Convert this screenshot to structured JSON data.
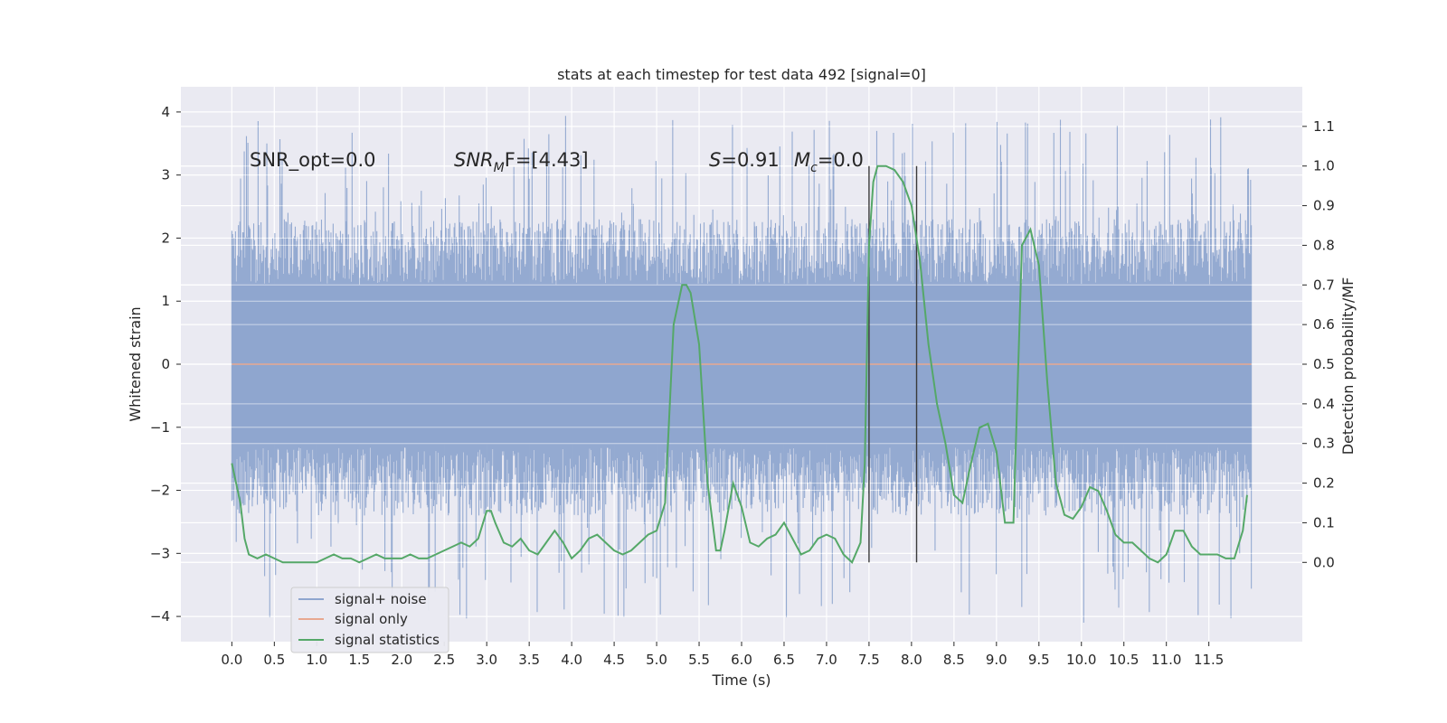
{
  "chart_data": {
    "type": "line",
    "title": "stats at each timestep for test data 492 [signal=0]",
    "xlabel": "Time (s)",
    "ylabel_left": "Whitened strain",
    "ylabel_right": "Detection probability/MF",
    "xlim": [
      -0.6,
      12.6
    ],
    "ylim_left": [
      -4.4,
      4.4
    ],
    "ylim_right": [
      -0.2,
      1.2
    ],
    "grid": true,
    "legend_position": "lower-left",
    "x_ticks": [
      "0.0",
      "0.5",
      "1.0",
      "1.5",
      "2.0",
      "2.5",
      "3.0",
      "3.5",
      "4.0",
      "4.5",
      "5.0",
      "5.5",
      "6.0",
      "6.5",
      "7.0",
      "7.5",
      "8.0",
      "8.5",
      "9.0",
      "9.5",
      "10.0",
      "10.5",
      "11.0",
      "11.5"
    ],
    "y_ticks_left": [
      "4",
      "3",
      "2",
      "1",
      "0",
      "−1",
      "−2",
      "−3",
      "−4"
    ],
    "y_ticks_right": [
      "1.1",
      "1.0",
      "0.9",
      "0.8",
      "0.7",
      "0.6",
      "0.5",
      "0.4",
      "0.3",
      "0.2",
      "0.1",
      "0.0"
    ],
    "annotations": {
      "snr_opt": "SNR_opt=0.0",
      "snr_mf_main": "SNR",
      "snr_mf_sub": "M",
      "snr_mf_rest": "F=[4.43]",
      "s_main": "S",
      "s_rest": "=0.91",
      "mc_main": "M",
      "mc_sub": "c",
      "mc_rest": "=0.0"
    },
    "vertical_lines_x": [
      7.5,
      8.06
    ],
    "series": [
      {
        "name": "signal+ noise",
        "color": "#8fa6cf",
        "x_range": [
          0.0,
          12.0
        ],
        "envelope_core": [
          -1.25,
          1.25
        ],
        "envelope_typical": [
          -2.4,
          2.3
        ],
        "peaks_max": 3.95,
        "troughs_min": -4.1
      },
      {
        "name": "signal only",
        "color": "#e8a890",
        "x": [
          0.0,
          12.0
        ],
        "y": [
          0.0,
          0.0
        ]
      },
      {
        "name": "signal statistics",
        "color": "#55a868",
        "axis": "right",
        "x": [
          0.0,
          0.1,
          0.15,
          0.2,
          0.3,
          0.4,
          0.5,
          0.6,
          0.8,
          1.0,
          1.1,
          1.2,
          1.3,
          1.4,
          1.5,
          1.6,
          1.7,
          1.8,
          1.9,
          2.0,
          2.1,
          2.2,
          2.3,
          2.4,
          2.5,
          2.6,
          2.7,
          2.8,
          2.9,
          3.0,
          3.05,
          3.1,
          3.2,
          3.3,
          3.4,
          3.5,
          3.6,
          3.7,
          3.8,
          3.9,
          4.0,
          4.1,
          4.2,
          4.3,
          4.4,
          4.5,
          4.6,
          4.7,
          4.8,
          4.9,
          5.0,
          5.1,
          5.2,
          5.3,
          5.35,
          5.4,
          5.5,
          5.6,
          5.7,
          5.75,
          5.8,
          5.9,
          6.0,
          6.1,
          6.2,
          6.3,
          6.4,
          6.5,
          6.6,
          6.7,
          6.8,
          6.9,
          7.0,
          7.1,
          7.2,
          7.3,
          7.4,
          7.45,
          7.5,
          7.55,
          7.6,
          7.7,
          7.8,
          7.9,
          8.0,
          8.1,
          8.2,
          8.3,
          8.4,
          8.5,
          8.6,
          8.7,
          8.8,
          8.9,
          9.0,
          9.1,
          9.2,
          9.3,
          9.4,
          9.5,
          9.6,
          9.7,
          9.8,
          9.9,
          10.0,
          10.1,
          10.2,
          10.3,
          10.4,
          10.5,
          10.6,
          10.7,
          10.8,
          10.9,
          11.0,
          11.1,
          11.2,
          11.3,
          11.4,
          11.5,
          11.6,
          11.7,
          11.8,
          11.9,
          11.95
        ],
        "y": [
          0.25,
          0.15,
          0.06,
          0.02,
          0.01,
          0.02,
          0.01,
          0.0,
          0.0,
          0.0,
          0.01,
          0.02,
          0.01,
          0.01,
          0.0,
          0.01,
          0.02,
          0.01,
          0.01,
          0.01,
          0.02,
          0.01,
          0.01,
          0.02,
          0.03,
          0.04,
          0.05,
          0.04,
          0.06,
          0.13,
          0.13,
          0.1,
          0.05,
          0.04,
          0.06,
          0.03,
          0.02,
          0.05,
          0.08,
          0.05,
          0.01,
          0.03,
          0.06,
          0.07,
          0.05,
          0.03,
          0.02,
          0.03,
          0.05,
          0.07,
          0.08,
          0.15,
          0.6,
          0.7,
          0.7,
          0.68,
          0.55,
          0.2,
          0.03,
          0.03,
          0.08,
          0.2,
          0.14,
          0.05,
          0.04,
          0.06,
          0.07,
          0.1,
          0.06,
          0.02,
          0.03,
          0.06,
          0.07,
          0.06,
          0.02,
          0.0,
          0.05,
          0.25,
          0.8,
          0.96,
          1.0,
          1.0,
          0.99,
          0.96,
          0.9,
          0.76,
          0.55,
          0.4,
          0.3,
          0.17,
          0.15,
          0.25,
          0.34,
          0.35,
          0.28,
          0.1,
          0.1,
          0.8,
          0.84,
          0.75,
          0.45,
          0.2,
          0.12,
          0.11,
          0.14,
          0.19,
          0.18,
          0.13,
          0.07,
          0.05,
          0.05,
          0.03,
          0.01,
          0.0,
          0.02,
          0.08,
          0.08,
          0.04,
          0.02,
          0.02,
          0.02,
          0.01,
          0.01,
          0.08,
          0.17
        ]
      }
    ]
  }
}
